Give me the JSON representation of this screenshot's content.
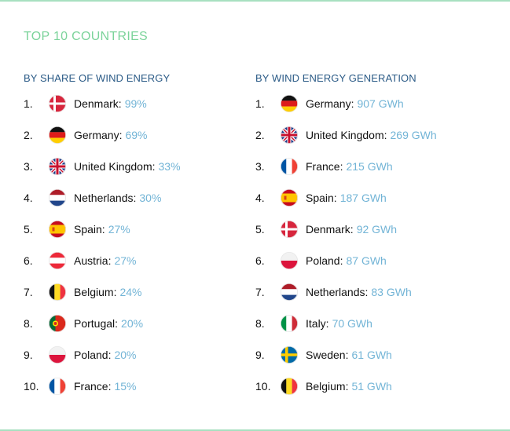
{
  "title": "TOP 10 COUNTRIES",
  "colors": {
    "title": "#7bd39a",
    "heading": "#2a5a86",
    "value": "#72b4d6",
    "border": "#a8e0c0"
  },
  "left": {
    "heading": "BY SHARE OF WIND ENERGY",
    "items": [
      {
        "rank": "1.",
        "country": "Denmark:",
        "value": "99%",
        "flag": "denmark-flag-icon"
      },
      {
        "rank": "2.",
        "country": "Germany:",
        "value": "69%",
        "flag": "germany-flag-icon"
      },
      {
        "rank": "3.",
        "country": "United Kingdom:",
        "value": "33%",
        "flag": "uk-flag-icon"
      },
      {
        "rank": "4.",
        "country": "Netherlands:",
        "value": "30%",
        "flag": "netherlands-flag-icon"
      },
      {
        "rank": "5.",
        "country": "Spain:",
        "value": "27%",
        "flag": "spain-flag-icon"
      },
      {
        "rank": "6.",
        "country": "Austria:",
        "value": "27%",
        "flag": "austria-flag-icon"
      },
      {
        "rank": "7.",
        "country": "Belgium:",
        "value": "24%",
        "flag": "belgium-flag-icon"
      },
      {
        "rank": "8.",
        "country": "Portugal:",
        "value": "20%",
        "flag": "portugal-flag-icon"
      },
      {
        "rank": "9.",
        "country": "Poland:",
        "value": "20%",
        "flag": "poland-flag-icon"
      },
      {
        "rank": "10.",
        "country": "France:",
        "value": "15%",
        "flag": "france-flag-icon"
      }
    ]
  },
  "right": {
    "heading": "BY WIND ENERGY GENERATION",
    "items": [
      {
        "rank": "1.",
        "country": "Germany:",
        "value": "907 GWh",
        "flag": "germany-flag-icon"
      },
      {
        "rank": "2.",
        "country": "United Kingdom:",
        "value": "269 GWh",
        "flag": "uk-flag-icon"
      },
      {
        "rank": "3.",
        "country": "France:",
        "value": "215 GWh",
        "flag": "france-flag-icon"
      },
      {
        "rank": "4.",
        "country": "Spain:",
        "value": "187 GWh",
        "flag": "spain-flag-icon"
      },
      {
        "rank": "5.",
        "country": "Denmark:",
        "value": "92 GWh",
        "flag": "denmark-flag-icon"
      },
      {
        "rank": "6.",
        "country": "Poland:",
        "value": "87 GWh",
        "flag": "poland-flag-icon"
      },
      {
        "rank": "7.",
        "country": "Netherlands:",
        "value": "83 GWh",
        "flag": "netherlands-flag-icon"
      },
      {
        "rank": "8.",
        "country": "Italy:",
        "value": "70 GWh",
        "flag": "italy-flag-icon"
      },
      {
        "rank": "9.",
        "country": "Sweden:",
        "value": "61 GWh",
        "flag": "sweden-flag-icon"
      },
      {
        "rank": "10.",
        "country": "Belgium:",
        "value": "51 GWh",
        "flag": "belgium-flag-icon"
      }
    ]
  }
}
